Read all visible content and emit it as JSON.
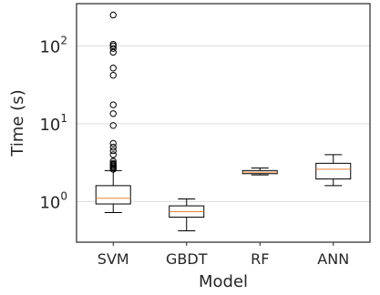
{
  "chart_data": {
    "type": "box",
    "xlabel": "Model",
    "ylabel": "Time (s)",
    "yscale": "log",
    "ylim": [
      0.3,
      350
    ],
    "grid": "horizontal-major",
    "yticks": [
      {
        "value": 1,
        "base": "10",
        "exp": "0"
      },
      {
        "value": 10,
        "base": "10",
        "exp": "1"
      },
      {
        "value": 100,
        "base": "10",
        "exp": "2"
      }
    ],
    "categories": [
      "SVM",
      "GBDT",
      "RF",
      "ANN"
    ],
    "boxes": [
      {
        "label": "SVM",
        "whisker_low": 0.72,
        "q1": 0.93,
        "median": 1.1,
        "q3": 1.6,
        "whisker_high": 2.5,
        "outliers": [
          2.6,
          2.7,
          2.8,
          2.9,
          3.0,
          3.1,
          3.3,
          4.0,
          4.5,
          5.0,
          5.6,
          9.5,
          13.5,
          17.5,
          42,
          52,
          83,
          93,
          100,
          105,
          250
        ]
      },
      {
        "label": "GBDT",
        "whisker_low": 0.42,
        "q1": 0.63,
        "median": 0.74,
        "q3": 0.88,
        "whisker_high": 1.08,
        "outliers": []
      },
      {
        "label": "RF",
        "whisker_low": 2.2,
        "q1": 2.28,
        "median": 2.38,
        "q3": 2.5,
        "whisker_high": 2.7,
        "outliers": []
      },
      {
        "label": "ANN",
        "whisker_low": 1.6,
        "q1": 1.95,
        "median": 2.6,
        "q3": 3.1,
        "whisker_high": 4.0,
        "outliers": []
      }
    ],
    "colors": {
      "box": "#000000",
      "median": "#e8833a",
      "grid": "#dddddd",
      "frame": "#262626"
    }
  }
}
